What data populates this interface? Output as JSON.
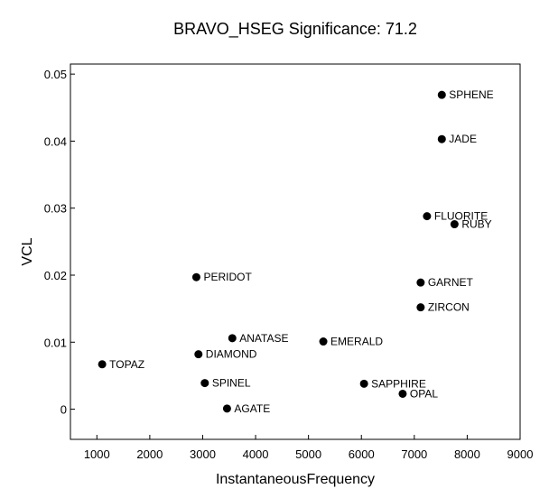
{
  "chart_data": {
    "type": "scatter",
    "title": "BRAVO_HSEG Significance:  71.2",
    "xlabel": "InstantaneousFrequency",
    "ylabel": "VCL",
    "xlim": [
      500,
      9000
    ],
    "ylim": [
      -0.0045,
      0.0515
    ],
    "xticks": [
      1000,
      2000,
      3000,
      4000,
      5000,
      6000,
      7000,
      8000,
      9000
    ],
    "yticks": [
      0,
      0.01,
      0.02,
      0.03,
      0.04,
      0.05
    ],
    "ytick_labels": [
      "0",
      "0.01",
      "0.02",
      "0.03",
      "0.04",
      "0.05"
    ],
    "grid": false,
    "marker_color": "#000000",
    "points": [
      {
        "label": "SPHENE",
        "x": 7520,
        "y": 0.0469
      },
      {
        "label": "JADE",
        "x": 7520,
        "y": 0.0403
      },
      {
        "label": "FLUORITE",
        "x": 7240,
        "y": 0.0288
      },
      {
        "label": "RUBY",
        "x": 7760,
        "y": 0.0276
      },
      {
        "label": "PERIDOT",
        "x": 2880,
        "y": 0.0197
      },
      {
        "label": "GARNET",
        "x": 7120,
        "y": 0.0189
      },
      {
        "label": "ZIRCON",
        "x": 7120,
        "y": 0.0152
      },
      {
        "label": "ANATASE",
        "x": 3560,
        "y": 0.0106
      },
      {
        "label": "EMERALD",
        "x": 5280,
        "y": 0.0101
      },
      {
        "label": "DIAMOND",
        "x": 2920,
        "y": 0.0082
      },
      {
        "label": "TOPAZ",
        "x": 1100,
        "y": 0.0067
      },
      {
        "label": "SPINEL",
        "x": 3040,
        "y": 0.0039
      },
      {
        "label": "SAPPHIRE",
        "x": 6050,
        "y": 0.0038
      },
      {
        "label": "OPAL",
        "x": 6780,
        "y": 0.0023
      },
      {
        "label": "AGATE",
        "x": 3460,
        "y": 0.0001
      }
    ]
  }
}
